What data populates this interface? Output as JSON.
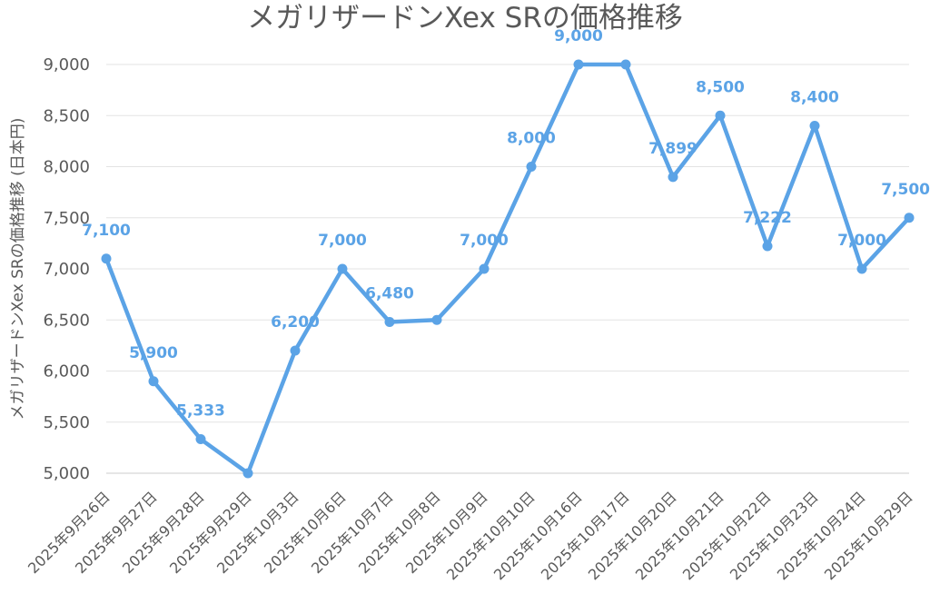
{
  "chart_data": {
    "type": "line",
    "title": "メガリザードンXex SRの価格推移",
    "xlabel": "",
    "ylabel": "メガリザードンXex SRの価格推移 (日本円)",
    "ylim": [
      5000,
      9000
    ],
    "yticks": [
      "5,000",
      "5,500",
      "6,000",
      "6,500",
      "7,000",
      "7,500",
      "8,000",
      "8,500",
      "9,000"
    ],
    "grid": true,
    "categories": [
      "2025年9月26日",
      "2025年9月27日",
      "2025年9月28日",
      "2025年9月29日",
      "2025年10月3日",
      "2025年10月6日",
      "2025年10月7日",
      "2025年10月8日",
      "2025年10月9日",
      "2025年10月10日",
      "2025年10月16日",
      "2025年10月17日",
      "2025年10月20日",
      "2025年10月21日",
      "2025年10月22日",
      "2025年10月23日",
      "2025年10月24日",
      "2025年10月29日"
    ],
    "series": [
      {
        "name": "",
        "color": "#5ba3e6",
        "values": [
          7100,
          5900,
          5333,
          5000,
          6200,
          7000,
          6480,
          6500,
          7000,
          8000,
          9000,
          9000,
          7899,
          8500,
          7222,
          8400,
          7000,
          7500
        ],
        "labels": [
          "7,100",
          "5,900",
          "5,333",
          "",
          "6,200",
          "7,000",
          "6,480",
          "",
          "7,000",
          "8,000",
          "9,000",
          "",
          "7,899",
          "8,500",
          "7,222",
          "8,400",
          "7,000",
          "7,500"
        ]
      }
    ]
  }
}
